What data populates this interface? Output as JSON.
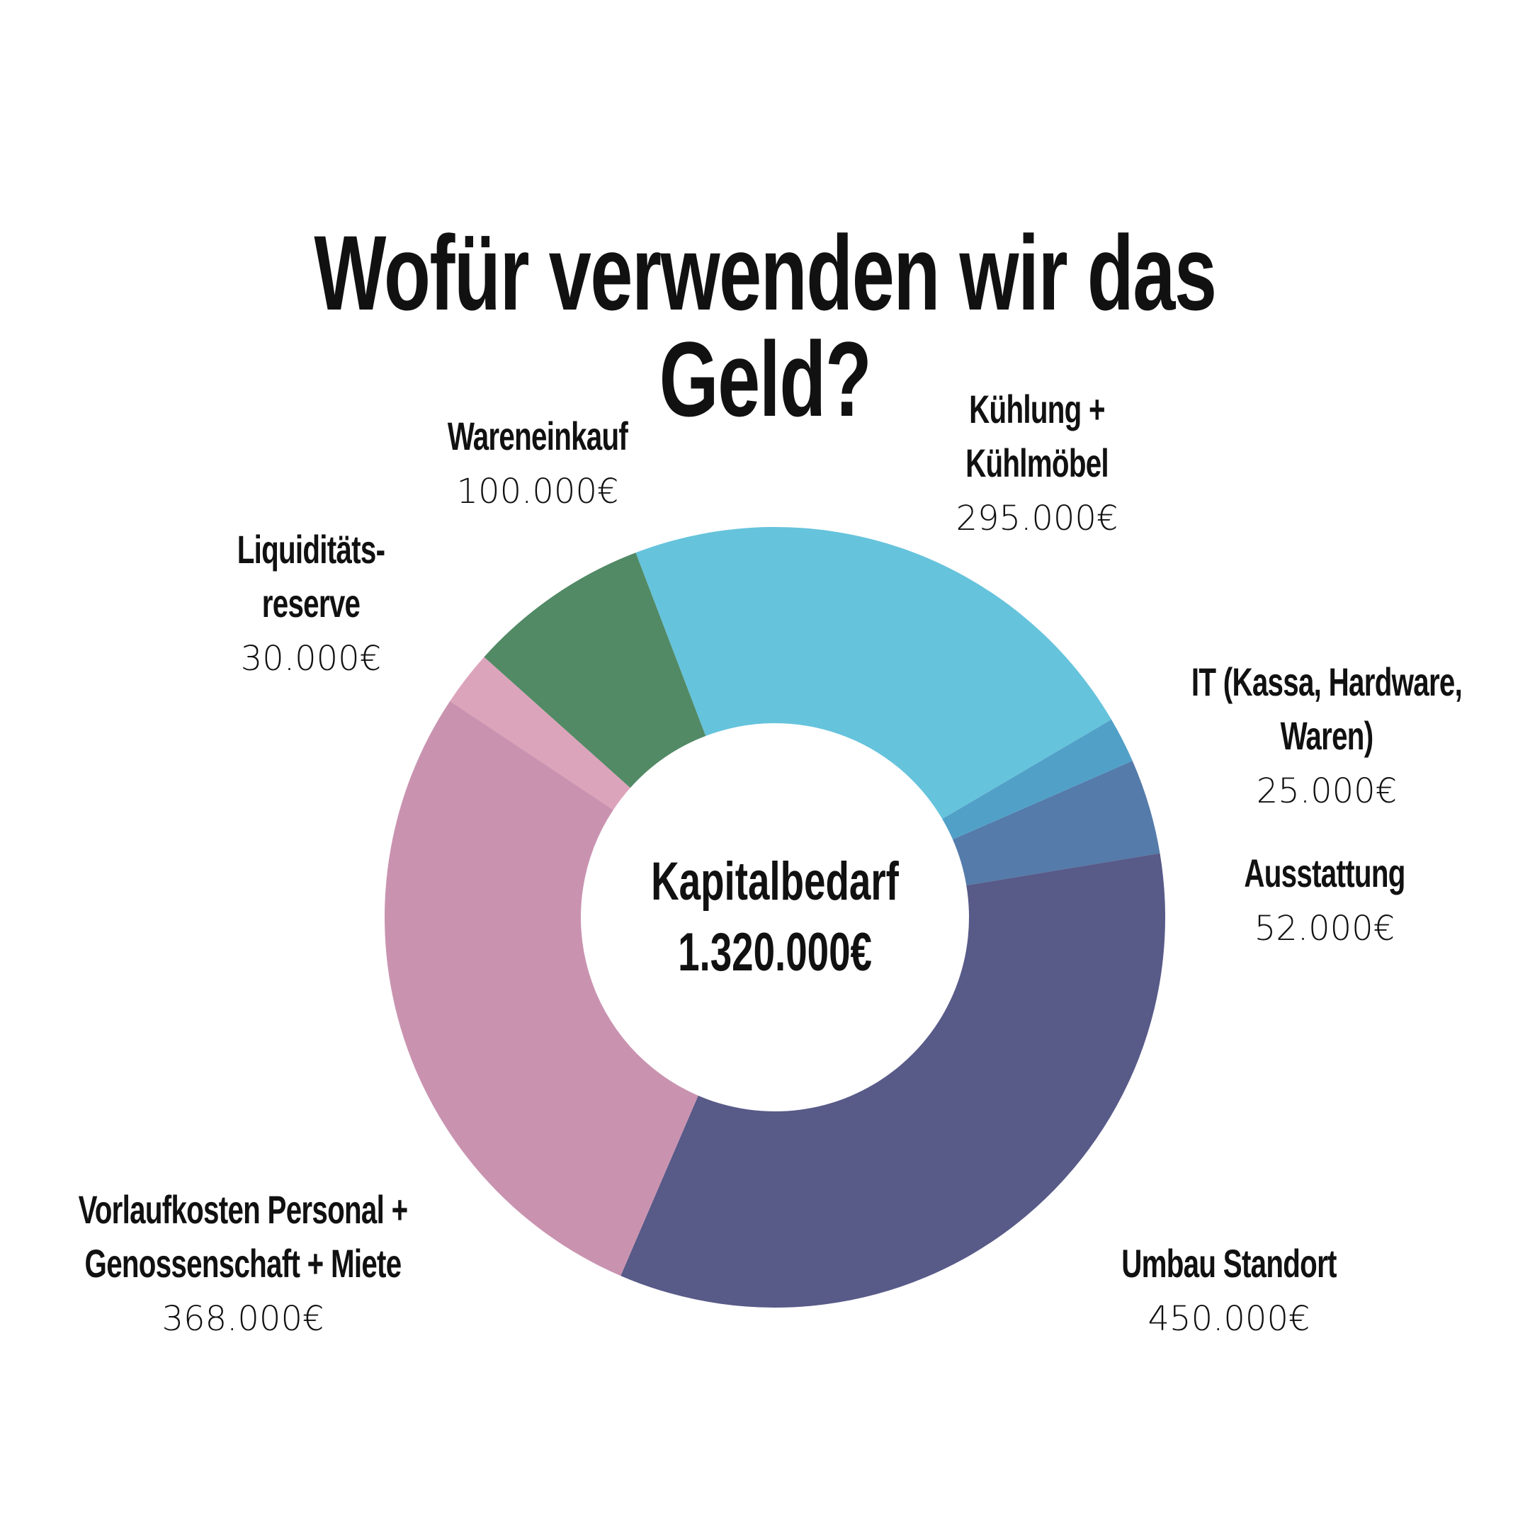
{
  "chart_data": {
    "type": "pie",
    "title": "Wofür verwenden wir das Geld?",
    "center_label": "Kapitalbedarf",
    "center_value": "1.320.000€",
    "total": 1320000,
    "start_angle_deg": -20.9,
    "slices": [
      {
        "name": "Kühlung + Kühlmöbel",
        "lines": [
          "Kühlung +",
          "Kühlmöbel"
        ],
        "value": 295000,
        "label": "295.000€",
        "color": "#66C3DC"
      },
      {
        "name": "IT (Kassa, Hardware, Waren)",
        "lines": [
          "IT (Kassa, Hardware,",
          "Waren)"
        ],
        "value": 25000,
        "label": "25.000€",
        "color": "#51A0C8"
      },
      {
        "name": "Ausstattung",
        "lines": [
          "Ausstattung"
        ],
        "value": 52000,
        "label": "52.000€",
        "color": "#547BAA"
      },
      {
        "name": "Umbau Standort",
        "lines": [
          "Umbau Standort"
        ],
        "value": 450000,
        "label": "450.000€",
        "color": "#585A88"
      },
      {
        "name": "Vorlaufkosten Personal + Genossenschaft + Miete",
        "lines": [
          "Vorlaufkosten Personal +",
          "Genossenschaft +  Miete"
        ],
        "value": 368000,
        "label": "368.000€",
        "color": "#C993B0"
      },
      {
        "name": "Liquiditätsreserve",
        "lines": [
          "Liquiditäts-",
          "reserve"
        ],
        "value": 30000,
        "label": "30.000€",
        "color": "#DCA4BA"
      },
      {
        "name": "Wareneinkauf",
        "lines": [
          "Wareneinkauf"
        ],
        "value": 100000,
        "label": "100.000€",
        "color": "#518A65"
      }
    ]
  }
}
